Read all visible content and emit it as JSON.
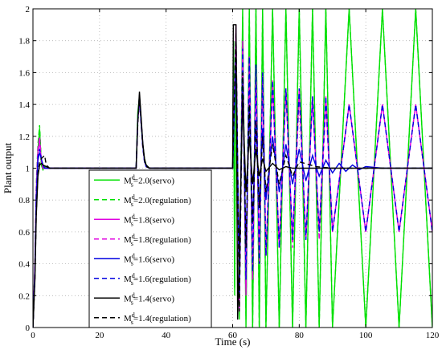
{
  "chart_data": {
    "type": "line",
    "title": "",
    "xlabel": "Time (s)",
    "ylabel": "Plant output",
    "xlim": [
      0,
      120
    ],
    "ylim": [
      0,
      2
    ],
    "xticks": [
      0,
      20,
      40,
      60,
      80,
      100,
      120
    ],
    "yticks": [
      0,
      0.2,
      0.4,
      0.6,
      0.8,
      1,
      1.2,
      1.4,
      1.6,
      1.8,
      2
    ],
    "grid": true,
    "legend_position": "lower-center",
    "series": [
      {
        "name": "Ms d=2.0(servo)",
        "label_main": "M",
        "label_sup": "d",
        "label_sub": "s",
        "label_rest": "=2.0(servo)",
        "color": "#00e000",
        "dash": "solid",
        "x": [
          0,
          0.6,
          1,
          1.5,
          2,
          2.5,
          3,
          3.5,
          4,
          5,
          6,
          8,
          10,
          30,
          31,
          31.5,
          32,
          32.5,
          33,
          33.5,
          34,
          35,
          36,
          38,
          40,
          60,
          60.3,
          60.6,
          61,
          62,
          63,
          64,
          65,
          66,
          67,
          68,
          69,
          70,
          72,
          74,
          76,
          78,
          80,
          82,
          84,
          86,
          88,
          90,
          95,
          100,
          105,
          110,
          115,
          120
        ],
        "y": [
          0,
          0.4,
          0.85,
          1.12,
          1.25,
          1.02,
          0.99,
          1.01,
          1.0,
          1.0,
          1.0,
          1.0,
          1.0,
          1.0,
          1.0,
          1.35,
          1.45,
          1.3,
          1.15,
          1.06,
          1.02,
          1.0,
          1.0,
          1.0,
          1.0,
          1.0,
          1.8,
          0.2,
          1.9,
          0.05,
          2.0,
          0.0,
          2.0,
          0.0,
          2.0,
          0.0,
          2.0,
          0.0,
          2.0,
          0.0,
          2.0,
          0.0,
          2.0,
          0.0,
          2.0,
          0.0,
          2.0,
          0.0,
          2.0,
          0.0,
          2.0,
          0.0,
          2.0,
          0.0
        ]
      },
      {
        "name": "Ms d=2.0(regulation)",
        "label_main": "M",
        "label_sup": "d",
        "label_sub": "s",
        "label_rest": "=2.0(regulation)",
        "color": "#00e000",
        "dash": "dashed",
        "x": [
          0,
          0.6,
          1,
          1.5,
          2,
          2.5,
          3,
          3.5,
          4,
          5,
          6,
          8,
          10,
          30,
          31,
          31.5,
          32,
          32.5,
          33,
          33.5,
          34,
          35,
          36,
          38,
          40,
          60,
          60.3,
          60.6,
          61,
          62,
          63,
          64,
          65,
          66,
          67,
          68,
          69,
          70,
          72,
          74,
          76,
          78,
          80,
          82,
          84,
          86,
          88,
          90,
          95,
          100,
          105,
          110,
          115,
          120
        ],
        "y": [
          0,
          0.4,
          0.9,
          1.15,
          1.27,
          1.05,
          0.99,
          1.01,
          1.0,
          1.0,
          1.0,
          1.0,
          1.0,
          1.0,
          1.0,
          1.33,
          1.43,
          1.28,
          1.14,
          1.05,
          1.02,
          1.0,
          1.0,
          1.0,
          1.0,
          1.0,
          1.7,
          0.25,
          1.85,
          0.1,
          1.95,
          0.05,
          2.0,
          0.0,
          2.0,
          0.0,
          2.0,
          0.0,
          2.0,
          0.0,
          2.0,
          0.0,
          2.0,
          0.0,
          2.0,
          0.0,
          2.0,
          0.0,
          2.0,
          0.0,
          2.0,
          0.0,
          2.0,
          0.0
        ]
      },
      {
        "name": "Ms d=1.8(servo)",
        "label_main": "M",
        "label_sup": "d",
        "label_sub": "s",
        "label_rest": "=1.8(servo)",
        "color": "#e000e0",
        "dash": "solid",
        "x": [
          0,
          0.6,
          1,
          1.5,
          2,
          2.5,
          3,
          3.5,
          4,
          5,
          6,
          8,
          10,
          30,
          31,
          31.5,
          32,
          32.5,
          33,
          33.5,
          34,
          35,
          36,
          38,
          40,
          60,
          61,
          62,
          63,
          64,
          65,
          66,
          67,
          68,
          69,
          70,
          72,
          74,
          76,
          78,
          80,
          82,
          84,
          86,
          88,
          90,
          95,
          100,
          105,
          110,
          115,
          120
        ],
        "y": [
          0,
          0.4,
          0.85,
          1.1,
          1.17,
          1.05,
          1.0,
          1.0,
          1.0,
          1.0,
          1.0,
          1.0,
          1.0,
          1.0,
          1.0,
          1.3,
          1.44,
          1.3,
          1.15,
          1.05,
          1.01,
          1.0,
          1.0,
          1.0,
          1.0,
          1.0,
          1.9,
          0.1,
          1.8,
          0.2,
          1.7,
          0.3,
          1.65,
          0.4,
          1.6,
          0.45,
          1.55,
          0.5,
          1.5,
          0.55,
          1.5,
          0.55,
          1.45,
          0.6,
          1.45,
          0.6,
          1.4,
          0.6,
          1.4,
          0.6,
          1.4,
          0.6
        ]
      },
      {
        "name": "Ms d=1.8(regulation)",
        "label_main": "M",
        "label_sup": "d",
        "label_sub": "s",
        "label_rest": "=1.8(regulation)",
        "color": "#e000e0",
        "dash": "dashed",
        "x": [
          0,
          0.6,
          1,
          1.5,
          2,
          2.5,
          3,
          3.5,
          4,
          5,
          6,
          8,
          10,
          30,
          31,
          31.5,
          32,
          32.5,
          33,
          33.5,
          34,
          35,
          36,
          38,
          40,
          60,
          61,
          62,
          63,
          64,
          65,
          66,
          67,
          68,
          69,
          70,
          72,
          74,
          76,
          78,
          80,
          82,
          84,
          86,
          88,
          90,
          95,
          100,
          105,
          110,
          115,
          120
        ],
        "y": [
          0,
          0.4,
          0.88,
          1.12,
          1.2,
          1.06,
          1.0,
          1.0,
          1.0,
          1.0,
          1.0,
          1.0,
          1.0,
          1.0,
          1.0,
          1.3,
          1.42,
          1.28,
          1.13,
          1.05,
          1.01,
          1.0,
          1.0,
          1.0,
          1.0,
          1.0,
          1.85,
          0.15,
          1.75,
          0.25,
          1.65,
          0.35,
          1.6,
          0.4,
          1.55,
          0.45,
          1.5,
          0.5,
          1.5,
          0.5,
          1.45,
          0.55,
          1.45,
          0.55,
          1.4,
          0.6,
          1.4,
          0.6,
          1.4,
          0.6,
          1.4,
          0.6
        ]
      },
      {
        "name": "Ms d=1.6(servo)",
        "label_main": "M",
        "label_sup": "d",
        "label_sub": "s",
        "label_rest": "=1.6(servo)",
        "color": "#0000e0",
        "dash": "solid",
        "x": [
          0,
          0.6,
          1,
          1.5,
          2,
          2.5,
          3,
          3.5,
          4,
          5,
          6,
          8,
          10,
          30,
          31,
          31.5,
          32,
          32.5,
          33,
          33.5,
          34,
          35,
          36,
          38,
          40,
          60,
          61,
          62,
          63,
          64,
          65,
          66,
          67,
          68,
          69,
          70,
          72,
          74,
          76,
          78,
          80,
          82,
          84,
          86,
          88,
          90,
          92,
          94,
          96,
          98,
          100,
          105,
          110,
          115,
          120
        ],
        "y": [
          0,
          0.35,
          0.8,
          1.05,
          1.1,
          1.06,
          1.02,
          1.0,
          1.0,
          1.0,
          1.0,
          1.0,
          1.0,
          1.0,
          1.0,
          1.3,
          1.46,
          1.3,
          1.15,
          1.05,
          1.01,
          1.0,
          1.0,
          1.0,
          1.0,
          1.0,
          1.7,
          0.3,
          1.55,
          0.5,
          1.4,
          0.65,
          1.3,
          0.75,
          1.25,
          0.8,
          1.2,
          0.85,
          1.15,
          0.9,
          1.12,
          0.92,
          1.08,
          0.95,
          1.05,
          0.97,
          1.03,
          0.98,
          1.02,
          0.99,
          1.01,
          1.0,
          1.0,
          1.0,
          1.0
        ]
      },
      {
        "name": "Ms d=1.6(regulation)",
        "label_main": "M",
        "label_sup": "d",
        "label_sub": "s",
        "label_rest": "=1.6(regulation)",
        "color": "#0000e0",
        "dash": "dashed",
        "x": [
          0,
          0.6,
          1,
          1.5,
          2,
          2.5,
          3,
          3.5,
          4,
          5,
          6,
          8,
          10,
          30,
          31,
          31.5,
          32,
          32.5,
          33,
          33.5,
          34,
          35,
          36,
          38,
          40,
          60,
          61,
          62,
          63,
          64,
          65,
          66,
          67,
          68,
          69,
          70,
          72,
          74,
          76,
          78,
          80,
          82,
          84,
          86,
          88,
          90,
          95,
          100,
          105,
          110,
          115,
          120
        ],
        "y": [
          0,
          0.35,
          0.82,
          1.07,
          1.12,
          1.06,
          1.02,
          1.0,
          1.0,
          1.0,
          1.0,
          1.0,
          1.0,
          1.0,
          1.0,
          1.28,
          1.43,
          1.28,
          1.13,
          1.04,
          1.01,
          1.0,
          1.0,
          1.0,
          1.0,
          1.0,
          1.8,
          0.2,
          1.75,
          0.3,
          1.7,
          0.35,
          1.65,
          0.4,
          1.6,
          0.45,
          1.55,
          0.5,
          1.5,
          0.55,
          1.5,
          0.55,
          1.45,
          0.6,
          1.45,
          0.6,
          1.4,
          0.6,
          1.4,
          0.6,
          1.4,
          0.6
        ]
      },
      {
        "name": "Ms d=1.4(servo)",
        "label_main": "M",
        "label_sup": "d",
        "label_sub": "s",
        "label_rest": "=1.4(servo)",
        "color": "#000000",
        "dash": "solid",
        "x": [
          0,
          0.6,
          1,
          1.5,
          2,
          2.5,
          3,
          4,
          5,
          6,
          8,
          10,
          30,
          31,
          31.5,
          32,
          32.5,
          33,
          33.5,
          34,
          35,
          36,
          38,
          40,
          60,
          60.2,
          60.5,
          61,
          61.5,
          62,
          63,
          64,
          65,
          66,
          67,
          68,
          69,
          70,
          72,
          74,
          76,
          78,
          80,
          85,
          90,
          100,
          110,
          120
        ],
        "y": [
          0,
          0.3,
          0.7,
          0.95,
          1.02,
          1.03,
          1.02,
          1.01,
          1.0,
          1.0,
          1.0,
          1.0,
          1.0,
          1.0,
          1.3,
          1.48,
          1.32,
          1.16,
          1.06,
          1.02,
          1.0,
          1.0,
          1.0,
          1.0,
          1.0,
          1.9,
          1.9,
          1.9,
          0.05,
          0.5,
          1.45,
          0.85,
          1.2,
          0.9,
          1.12,
          0.95,
          1.06,
          0.98,
          1.03,
          0.99,
          1.01,
          1.0,
          1.0,
          1.0,
          1.0,
          1.0,
          1.0,
          1.0
        ]
      },
      {
        "name": "Ms d=1.4(regulation)",
        "label_main": "M",
        "label_sup": "d",
        "label_sub": "s",
        "label_rest": "=1.4(regulation)",
        "color": "#000000",
        "dash": "dashed",
        "x": [
          0,
          0.6,
          1,
          1.5,
          2,
          2.5,
          3,
          3.5,
          4,
          5,
          6,
          8,
          10,
          30,
          31,
          31.5,
          32,
          32.5,
          33,
          33.5,
          34,
          35,
          36,
          38,
          40,
          60,
          61,
          62,
          63,
          64,
          65,
          66,
          67,
          68,
          69,
          70,
          72,
          74,
          76,
          78,
          80,
          85,
          90,
          100,
          110,
          120
        ],
        "y": [
          0,
          0.3,
          0.72,
          0.97,
          1.04,
          1.06,
          1.07,
          1.08,
          1.02,
          1.0,
          1.0,
          1.0,
          1.0,
          1.0,
          1.0,
          1.28,
          1.45,
          1.3,
          1.14,
          1.05,
          1.01,
          1.0,
          1.0,
          1.0,
          1.0,
          1.0,
          1.85,
          0.1,
          1.6,
          0.5,
          1.4,
          0.65,
          1.3,
          0.75,
          1.2,
          0.85,
          1.15,
          0.9,
          1.08,
          0.95,
          1.04,
          1.01,
          1.0,
          1.0,
          1.0,
          1.0
        ]
      }
    ]
  }
}
